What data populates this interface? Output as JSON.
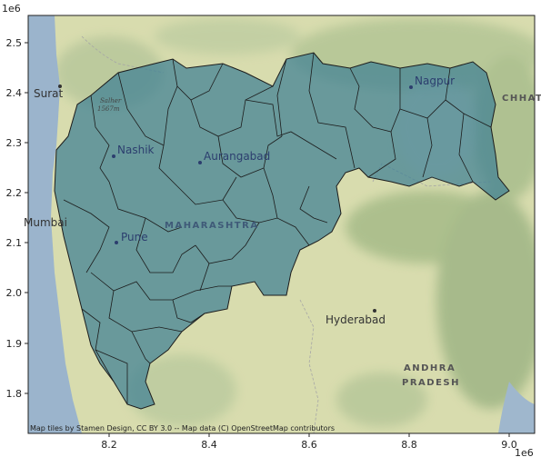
{
  "map": {
    "exponent_y": "1e6",
    "exponent_x": "1e6",
    "x_ticks": [
      "8.2",
      "8.4",
      "8.6",
      "8.8",
      "9.0"
    ],
    "y_ticks": [
      "2.5",
      "2.4",
      "2.3",
      "2.2",
      "2.1",
      "2.0",
      "1.9",
      "1.8"
    ],
    "labels": {
      "surat": "Surat",
      "nashik": "Nashik",
      "aurangabad": "Aurangabad",
      "nagpur": "Nagpur",
      "mumbai": "Mumbai",
      "pune": "Pune",
      "maharashtra": "MAHARASHTRA",
      "hyderabad": "Hyderabad",
      "andhra_1": "ANDHRA",
      "andhra_2": "PRADESH",
      "chhattisgarh": "CHHAT",
      "salher_1": "Salher",
      "salher_2": "1567m"
    },
    "attribution": "Map tiles by Stamen Design, CC BY 3.0 -- Map data (C) OpenStreetMap contributors",
    "colors": {
      "land": "#d8dcae",
      "land_green": "#a9bf8c",
      "sea": "#9bb4cc",
      "state_fill": "#3e7f94",
      "border": "#1c1c1c"
    }
  }
}
